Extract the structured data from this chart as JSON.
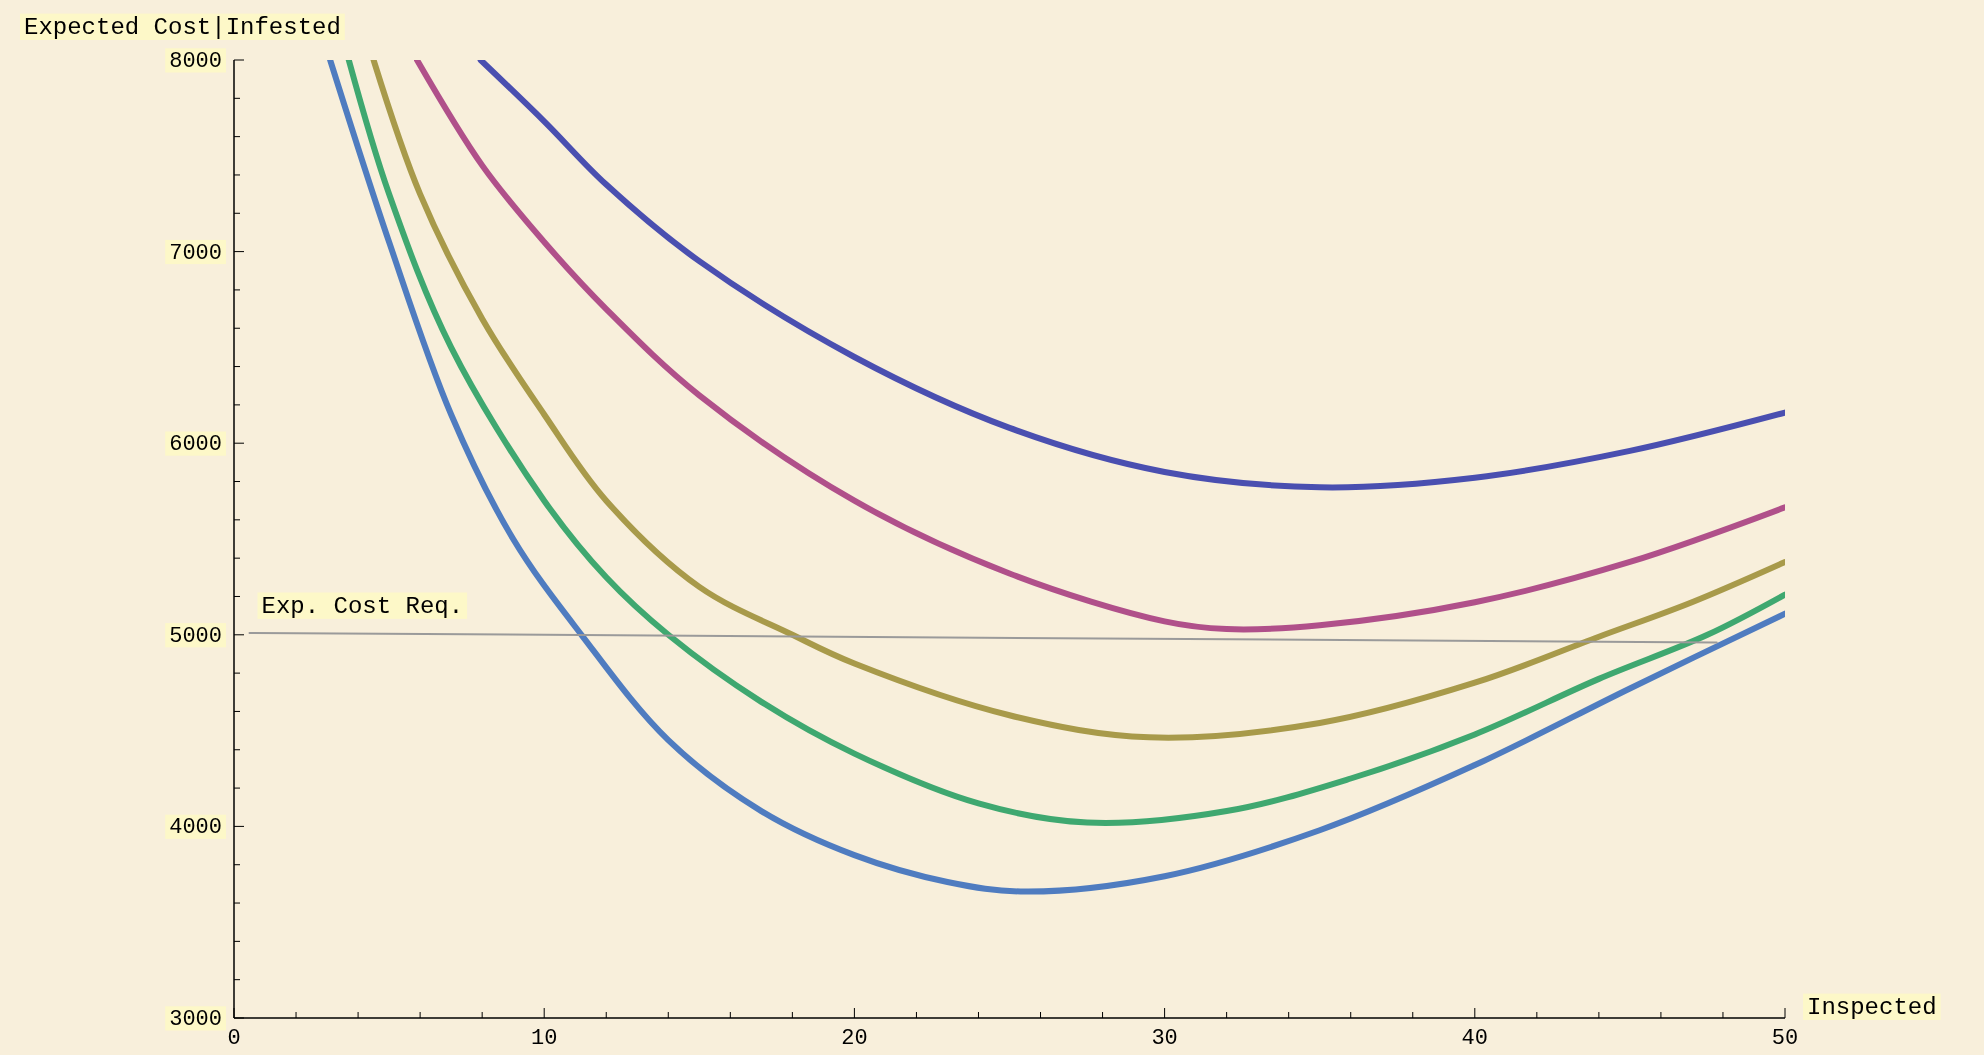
{
  "chart_data": {
    "type": "line",
    "xlabel": "Inspected",
    "ylabel": "Expected Cost|Infested",
    "xlim": [
      0,
      50
    ],
    "ylim": [
      3000,
      8000
    ],
    "xticks": [
      0,
      {
        "value": 2,
        "label": null
      },
      {
        "value": 4,
        "label": null
      },
      {
        "value": 6,
        "label": null
      },
      {
        "value": 8,
        "label": null
      },
      10,
      {
        "value": 12,
        "label": null
      },
      {
        "value": 14,
        "label": null
      },
      {
        "value": 16,
        "label": null
      },
      {
        "value": 18,
        "label": null
      },
      20,
      {
        "value": 22,
        "label": null
      },
      {
        "value": 24,
        "label": null
      },
      {
        "value": 26,
        "label": null
      },
      {
        "value": 28,
        "label": null
      },
      30,
      {
        "value": 32,
        "label": null
      },
      {
        "value": 34,
        "label": null
      },
      {
        "value": 36,
        "label": null
      },
      {
        "value": 38,
        "label": null
      },
      40,
      {
        "value": 42,
        "label": null
      },
      {
        "value": 44,
        "label": null
      },
      {
        "value": 46,
        "label": null
      },
      {
        "value": 48,
        "label": null
      },
      50
    ],
    "yticks": [
      3000,
      {
        "value": 3200,
        "label": null
      },
      {
        "value": 3400,
        "label": null
      },
      {
        "value": 3600,
        "label": null
      },
      {
        "value": 3800,
        "label": null
      },
      4000,
      {
        "value": 4200,
        "label": null
      },
      {
        "value": 4400,
        "label": null
      },
      {
        "value": 4600,
        "label": null
      },
      {
        "value": 4800,
        "label": null
      },
      5000,
      {
        "value": 5200,
        "label": null
      },
      {
        "value": 5400,
        "label": null
      },
      {
        "value": 5600,
        "label": null
      },
      {
        "value": 5800,
        "label": null
      },
      6000,
      {
        "value": 6200,
        "label": null
      },
      {
        "value": 6400,
        "label": null
      },
      {
        "value": 6600,
        "label": null
      },
      {
        "value": 6800,
        "label": null
      },
      7000,
      {
        "value": 7200,
        "label": null
      },
      {
        "value": 7400,
        "label": null
      },
      {
        "value": 7600,
        "label": null
      },
      {
        "value": 7800,
        "label": null
      },
      8000
    ],
    "grid": false,
    "marker": "none",
    "line_style": "solid",
    "annotations": [
      {
        "text": "Exp. Cost Req.",
        "x": 0.5,
        "y": 5010
      }
    ],
    "series": [
      {
        "color": "#4a4fb0",
        "x": [
          7.95,
          10,
          12,
          15,
          20,
          25,
          30,
          35,
          40,
          45,
          50
        ],
        "values": [
          8000,
          7680,
          7350,
          6950,
          6450,
          6080,
          5850,
          5770,
          5820,
          5960,
          6160
        ]
      },
      {
        "color": "#b0508a",
        "x": [
          5.9,
          8,
          10,
          12,
          15,
          20,
          25,
          30,
          32,
          35,
          40,
          45,
          50
        ],
        "values": [
          8000,
          7450,
          7050,
          6700,
          6250,
          5700,
          5320,
          5070,
          5030,
          5050,
          5170,
          5380,
          5665
        ]
      },
      {
        "color": "#a89a4a",
        "x": [
          4.5,
          6,
          8,
          10,
          12,
          15,
          18,
          20,
          25,
          29.5,
          35,
          40,
          44,
          47,
          50
        ],
        "values": [
          8000,
          7300,
          6650,
          6150,
          5700,
          5250,
          5000,
          4850,
          4580,
          4465,
          4540,
          4750,
          4990,
          5170,
          5380
        ]
      },
      {
        "color": "#3fa870",
        "x": [
          3.7,
          5,
          7,
          10,
          12,
          14,
          17,
          20,
          24,
          27.5,
          32,
          36,
          40,
          44,
          47.5,
          50
        ],
        "values": [
          8000,
          7300,
          6500,
          5700,
          5300,
          5000,
          4650,
          4380,
          4120,
          4020,
          4080,
          4250,
          4480,
          4770,
          5000,
          5210
        ]
      },
      {
        "color": "#4f7cc0",
        "x": [
          3.1,
          5,
          7,
          9,
          11.2,
          14,
          17,
          20,
          23,
          25.5,
          30,
          35,
          40,
          45,
          50
        ],
        "values": [
          8000,
          7050,
          6150,
          5500,
          5000,
          4450,
          4080,
          3850,
          3710,
          3660,
          3740,
          3980,
          4320,
          4720,
          5110
        ]
      },
      {
        "color": "#9a9a9a",
        "x": [
          0.5,
          47.8
        ],
        "values": [
          5010,
          4960
        ]
      }
    ]
  }
}
